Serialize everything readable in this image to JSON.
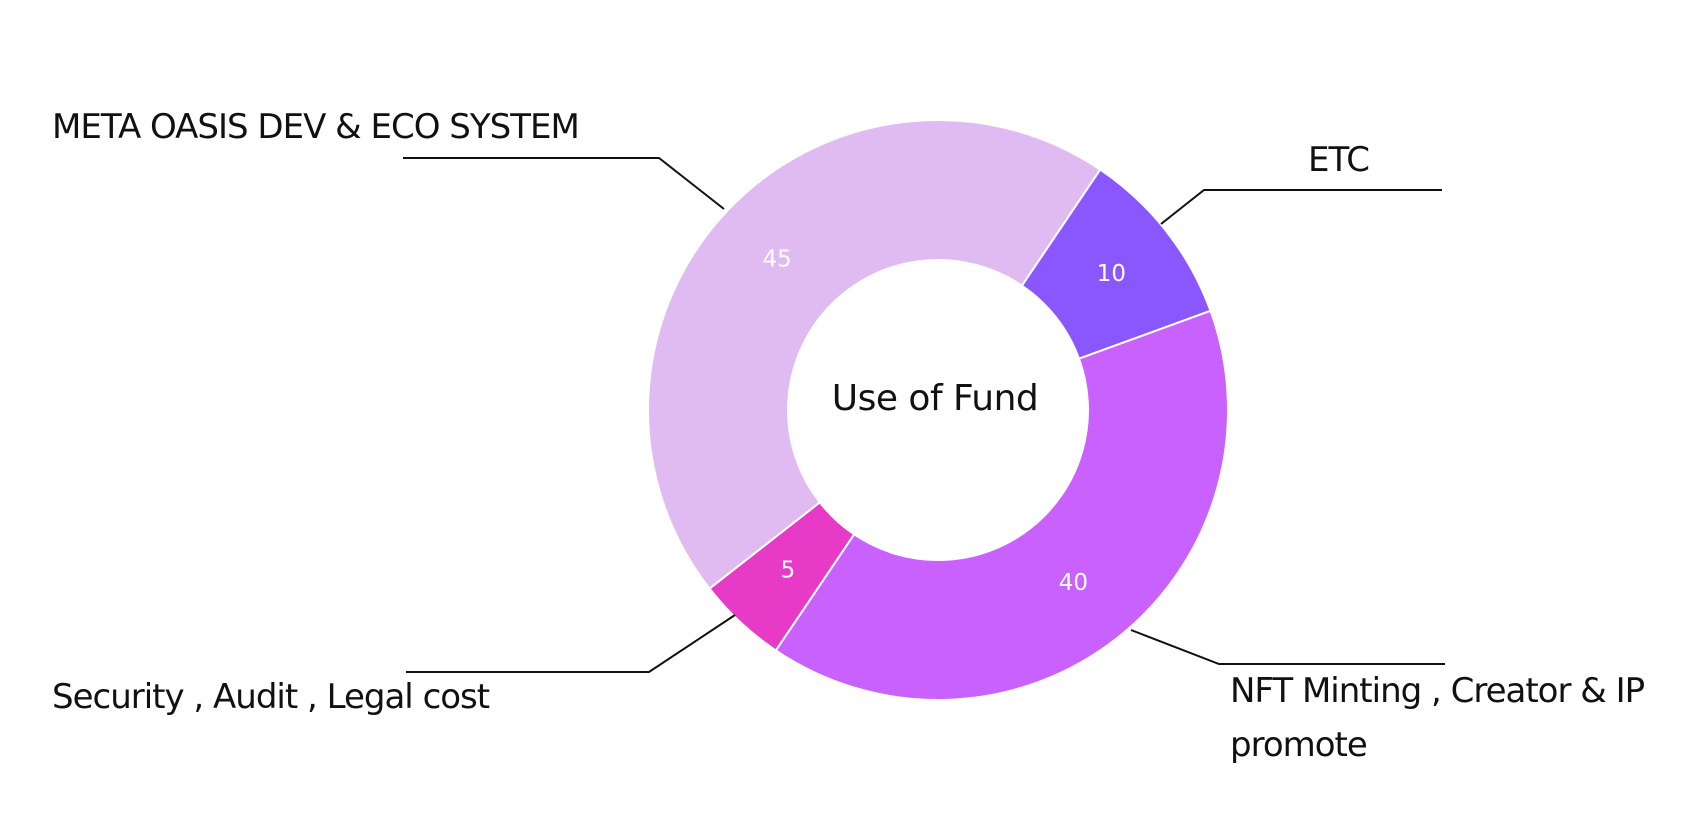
{
  "chart_data": {
    "type": "pie",
    "style": "donut",
    "title": "Use of Fund",
    "slices": [
      {
        "label": "ETC",
        "value": 10,
        "color": "#8a57ff"
      },
      {
        "label": "NFT Minting , Creator & IP promote",
        "value": 40,
        "color": "#c961ff"
      },
      {
        "label": "Security , Audit , Legal cost",
        "value": 5,
        "color": "#e63ac7"
      },
      {
        "label": "META OASIS DEV & ECO SYSTEM",
        "value": 45,
        "color": "#dfbbf1"
      }
    ],
    "start_angle_deg": 34,
    "direction": "clockwise",
    "legend": "none"
  }
}
